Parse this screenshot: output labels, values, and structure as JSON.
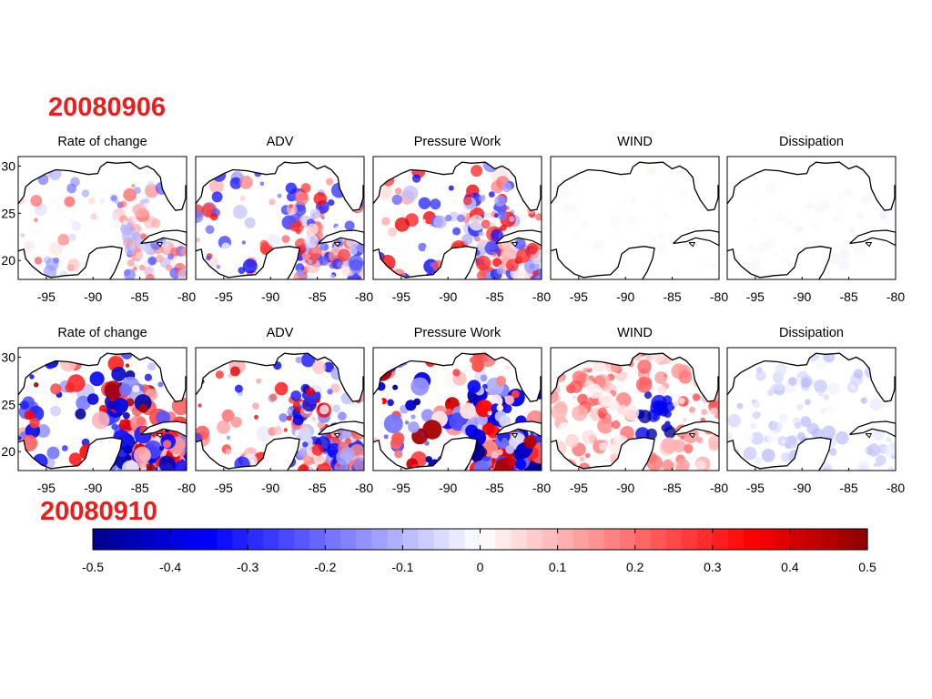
{
  "dates": {
    "first": "20080906",
    "second": "20080910"
  },
  "colors": {
    "date": "#ee1c1c"
  },
  "chart_data": {
    "type": "heatmap",
    "layout": "2 rows x 5 map panels (Gulf of Mexico)",
    "panel_titles": [
      "Rate of change",
      "ADV",
      "Pressure Work",
      "WIND",
      "Dissipation"
    ],
    "x_ticks": [
      "-95",
      "-90",
      "-85",
      "-80"
    ],
    "x_range": [
      -98,
      -80
    ],
    "y_ticks": [
      "30",
      "25",
      "20"
    ],
    "y_range": [
      18,
      31
    ],
    "colorbar": {
      "min": -0.5,
      "max": 0.5,
      "ticks": [
        "-0.5",
        "-0.4",
        "-0.3",
        "-0.2",
        "-0.1",
        "0",
        "0.1",
        "0.2",
        "0.3",
        "0.4",
        "0.5"
      ],
      "low_color": "#00008c",
      "mid_color": "#ffffff",
      "high_color": "#8b0000"
    },
    "rows": [
      {
        "date": "20080906",
        "panels": [
          {
            "title": "Rate of change",
            "intensity": 0.35,
            "pattern": "mixed"
          },
          {
            "title": "ADV",
            "intensity": 0.5,
            "pattern": "mixed"
          },
          {
            "title": "Pressure Work",
            "intensity": 0.55,
            "pattern": "mixed"
          },
          {
            "title": "WIND",
            "intensity": 0.08,
            "pattern": "faint-red"
          },
          {
            "title": "Dissipation",
            "intensity": 0.1,
            "pattern": "faint-blue"
          }
        ]
      },
      {
        "date": "20080910",
        "panels": [
          {
            "title": "Rate of change",
            "intensity": 0.85,
            "pattern": "mixed"
          },
          {
            "title": "ADV",
            "intensity": 0.6,
            "pattern": "mixed"
          },
          {
            "title": "Pressure Work",
            "intensity": 1.0,
            "pattern": "mixed"
          },
          {
            "title": "WIND",
            "intensity": 0.6,
            "pattern": "wind"
          },
          {
            "title": "Dissipation",
            "intensity": 0.3,
            "pattern": "blue"
          }
        ]
      }
    ]
  }
}
